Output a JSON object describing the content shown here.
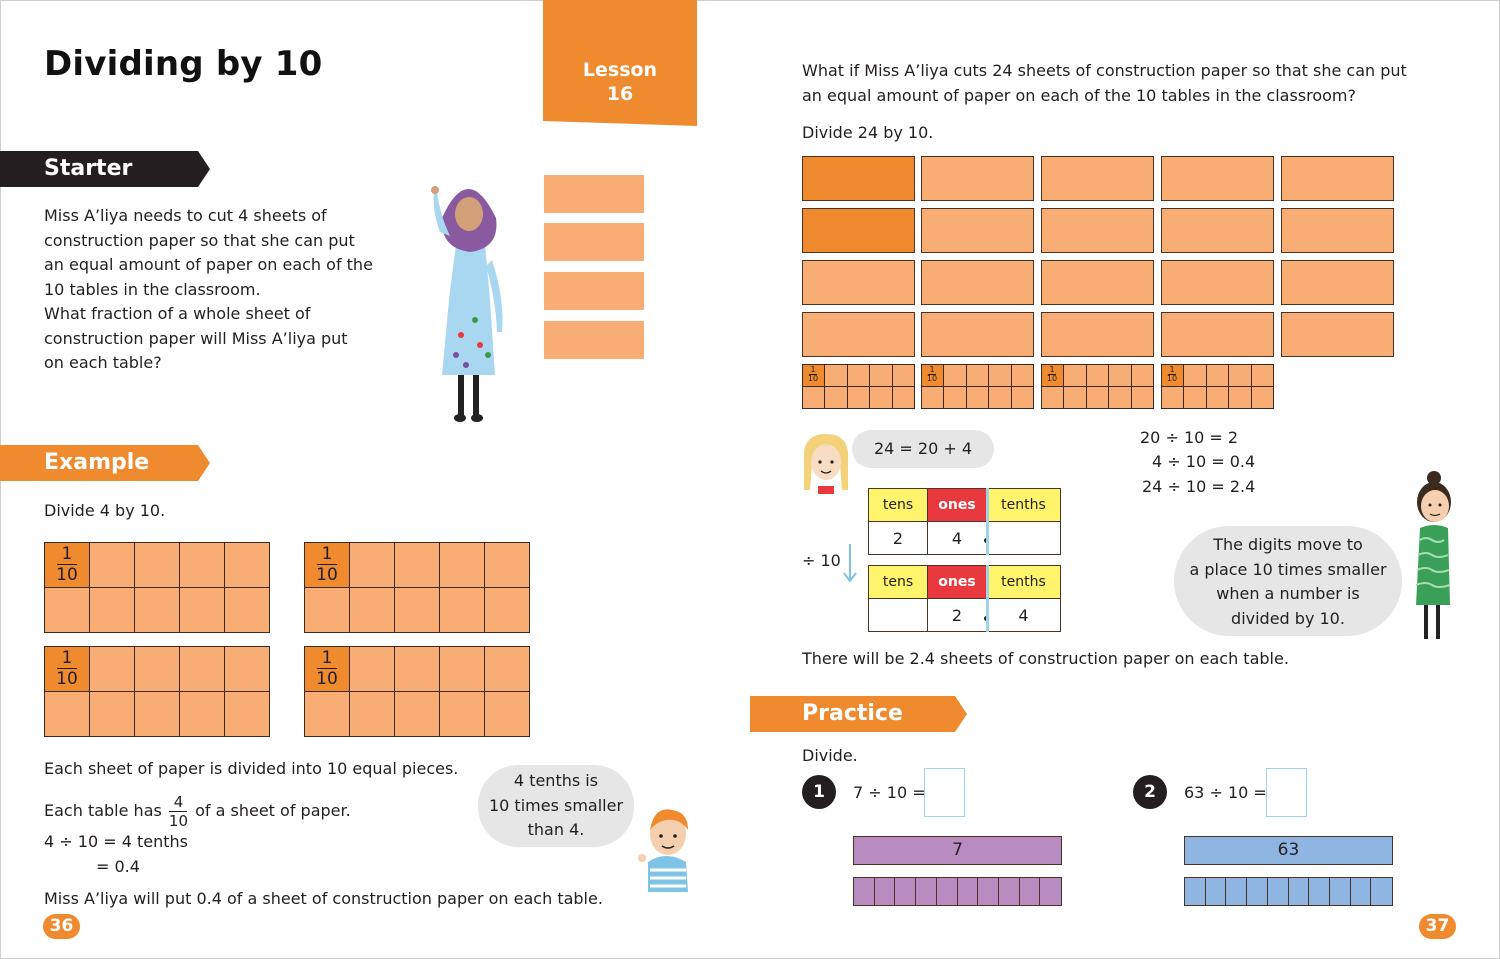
{
  "title": "Dividing by 10",
  "lesson": {
    "label": "Lesson",
    "number": "16"
  },
  "starter": {
    "heading": "Starter",
    "lines": [
      "Miss A’liya needs to cut 4 sheets of",
      "construction paper so that she can put",
      "an equal amount of paper on each of the",
      "10 tables in the classroom.",
      "What fraction of a whole sheet of",
      "construction paper will Miss A’liya put",
      "on each table?"
    ]
  },
  "example": {
    "heading": "Example",
    "instruction": "Divide 4 by 10.",
    "fraction": {
      "num": "1",
      "den": "10"
    },
    "explain1": "Each sheet of paper is divided into 10 equal pieces.",
    "explain2_pre": "Each table has",
    "explain2_num": "4",
    "explain2_den": "10",
    "explain2_post": "of a sheet of paper.",
    "eq1": "4 ÷ 10 = 4 tenths",
    "eq2": "= 0.4",
    "conclusion": "Miss A’liya will put 0.4 of a sheet of construction paper on each table.",
    "bubble": [
      "4 tenths is",
      "10 times smaller",
      "than 4."
    ]
  },
  "right": {
    "question_lines": [
      "What if Miss A’liya cuts 24 sheets of construction paper so that she can put",
      "an equal amount of paper on each of the 10 tables in the classroom?"
    ],
    "instruction": "Divide 24 by 10.",
    "small_fraction": {
      "num": "1",
      "den": "10"
    },
    "bubble_eq": "24 = 20 + 4",
    "equations": [
      "20 ÷ 10 = 2",
      "4 ÷ 10 = 0.4",
      "24 ÷ 10 = 2.4"
    ],
    "table_headers": [
      "tens",
      "ones",
      "tenths"
    ],
    "table1": [
      "2",
      "4",
      ""
    ],
    "table2": [
      "",
      "2",
      "4"
    ],
    "divide_label": "÷ 10",
    "bubble2": [
      "The digits move to",
      "a place 10 times smaller",
      "when a number is",
      "divided by 10."
    ],
    "conclusion": "There will be 2.4 sheets of construction paper on each table."
  },
  "practice": {
    "heading": "Practice",
    "instruction": "Divide.",
    "items": [
      {
        "num": "1",
        "question": "7 ÷ 10 =",
        "bar_value": "7"
      },
      {
        "num": "2",
        "question": "63 ÷ 10 =",
        "bar_value": "63"
      }
    ]
  },
  "page_numbers": {
    "left": "36",
    "right": "37"
  },
  "colors": {
    "orange": "#f08a2f",
    "light_orange": "#f7ad73",
    "purple": "#b88cc1",
    "blue": "#8fb6e3",
    "yellow": "#fff46b",
    "red": "#e8393e"
  }
}
